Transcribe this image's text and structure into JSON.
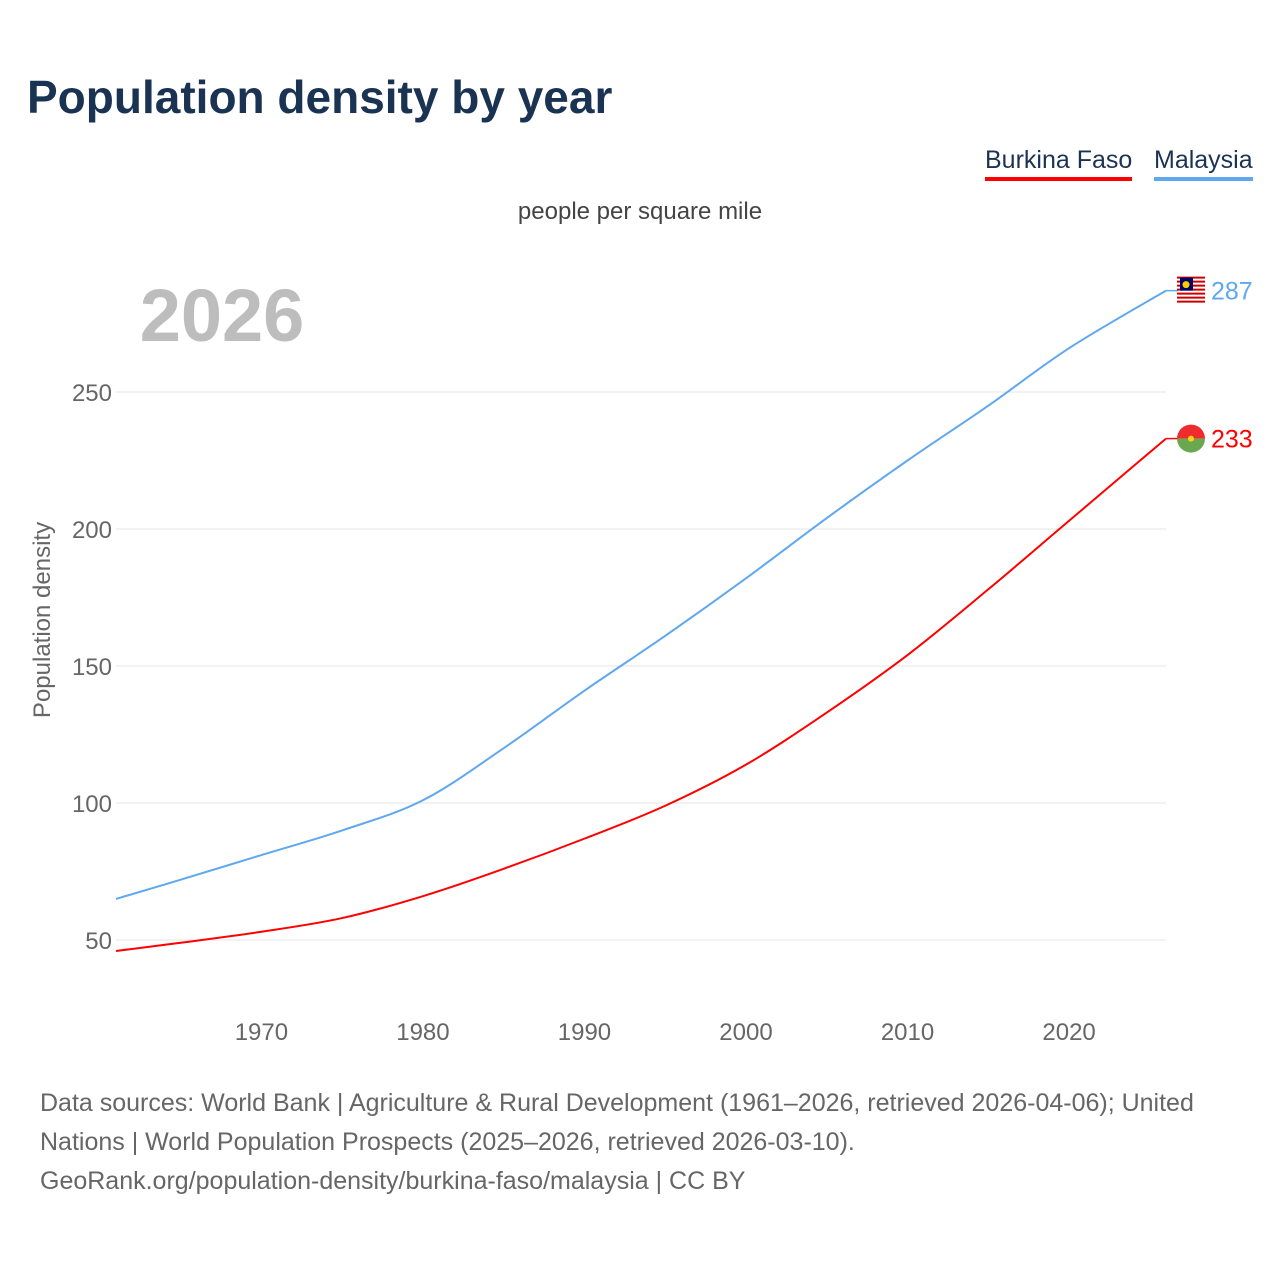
{
  "title": "Population density by year",
  "subtitle": "people per square mile",
  "legend": [
    {
      "label": "Burkina Faso",
      "color": "#ff0000"
    },
    {
      "label": "Malaysia",
      "color": "#5fa8f0"
    }
  ],
  "footer": {
    "line1": "Data sources: World Bank | Agriculture & Rural Development (1961–2026, retrieved 2026-04-06); United Nations | World Population Prospects (2025–2026, retrieved 2026-03-10).",
    "line2": "GeoRank.org/population-density/burkina-faso/malaysia | CC BY"
  },
  "chart_data": {
    "type": "line",
    "title": "Population density by year",
    "ylabel": "Population density",
    "xlabel": "",
    "year_watermark": "2026",
    "xlim": [
      1961,
      2026
    ],
    "ylim": [
      30,
      300
    ],
    "x_ticks": [
      1970,
      1980,
      1990,
      2000,
      2010,
      2020
    ],
    "y_ticks": [
      50,
      100,
      150,
      200,
      250
    ],
    "grid": true,
    "legend_position": "top-right",
    "x": [
      1961,
      1965,
      1970,
      1975,
      1980,
      1985,
      1990,
      1995,
      2000,
      2005,
      2010,
      2015,
      2020,
      2026
    ],
    "series": [
      {
        "name": "Burkina Faso",
        "color": "#ff0000",
        "end_label": "233",
        "values": [
          46,
          49,
          53,
          58,
          66,
          76,
          87,
          99,
          114,
          133,
          154,
          178,
          203,
          233
        ]
      },
      {
        "name": "Malaysia",
        "color": "#5fa8f0",
        "end_label": "287",
        "values": [
          65,
          72,
          81,
          90,
          101,
          120,
          141,
          161,
          182,
          204,
          225,
          245,
          266,
          287
        ]
      }
    ]
  }
}
